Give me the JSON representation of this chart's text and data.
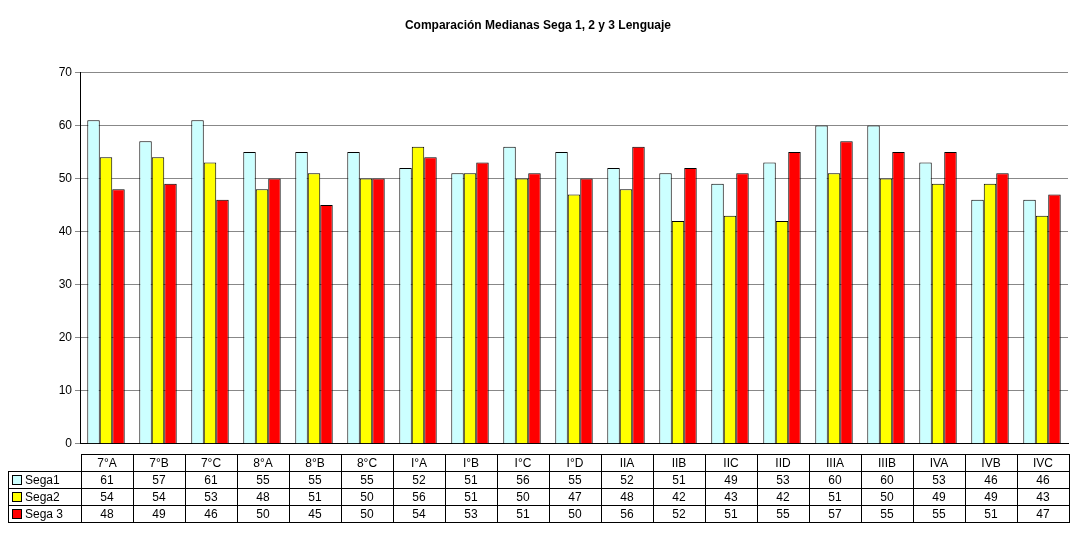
{
  "chart_data": {
    "type": "bar",
    "title": "Comparación Medianas Sega 1, 2 y 3 Lenguaje",
    "categories": [
      "7°A",
      "7°B",
      "7°C",
      "8°A",
      "8°B",
      "8°C",
      "I°A",
      "I°B",
      "I°C",
      "I°D",
      "IIA",
      "IIB",
      "IIC",
      "IID",
      "IIIA",
      "IIIB",
      "IVA",
      "IVB",
      "IVC"
    ],
    "series": [
      {
        "name": "Sega1",
        "color": "#ccffff",
        "values": [
          61,
          57,
          61,
          55,
          55,
          55,
          52,
          51,
          56,
          55,
          52,
          51,
          49,
          53,
          60,
          60,
          53,
          46,
          46
        ]
      },
      {
        "name": "Sega2",
        "color": "#ffff00",
        "values": [
          54,
          54,
          53,
          48,
          51,
          50,
          56,
          51,
          50,
          47,
          48,
          42,
          43,
          42,
          51,
          50,
          49,
          49,
          43
        ]
      },
      {
        "name": "Sega 3",
        "color": "#ff0000",
        "values": [
          48,
          49,
          46,
          50,
          45,
          50,
          54,
          53,
          51,
          50,
          56,
          52,
          51,
          55,
          57,
          55,
          55,
          51,
          47
        ]
      }
    ],
    "ylim": [
      0,
      70
    ],
    "yticks": [
      0,
      10,
      20,
      30,
      40,
      50,
      60,
      70
    ],
    "grid": "y",
    "legend": "bottom",
    "data_labels": true
  }
}
